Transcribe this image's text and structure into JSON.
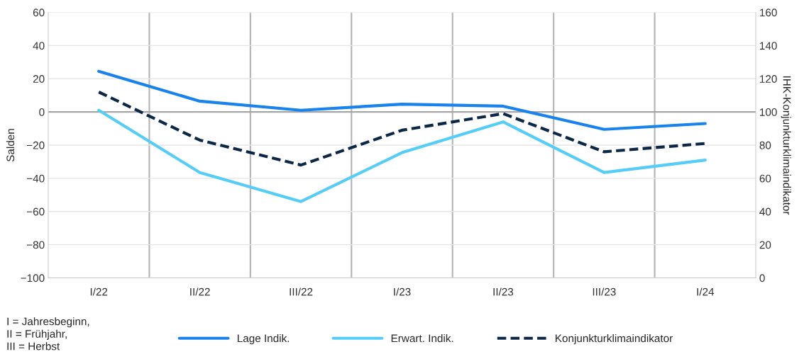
{
  "chart_data": {
    "type": "line",
    "ylabel": "Salden",
    "y2label": "IHK-Konjunkturklimaindikator",
    "categories": [
      "I/22",
      "II/22",
      "III/22",
      "I/23",
      "II/23",
      "III/23",
      "I/24"
    ],
    "series": [
      {
        "name": "Lage Indik.",
        "color": "#1a82ec",
        "values": [
          24.5,
          6.5,
          1,
          4.7,
          3.5,
          -10.5,
          -7
        ]
      },
      {
        "name": "Erwart. Indik.",
        "color": "#55cdf7",
        "values": [
          1,
          -36.5,
          -54,
          -24.5,
          -6,
          -36.5,
          -29
        ]
      },
      {
        "name": "Konjunkturklimaindikator",
        "color": "#0d2747",
        "values": [
          112,
          83,
          68,
          89,
          99,
          76,
          81
        ],
        "axis": "y2",
        "line_style": "dashed"
      }
    ],
    "ylim": [
      -100,
      60
    ],
    "yticks": [
      {
        "value": -100,
        "label": "−100"
      },
      {
        "value": -80,
        "label": "−80"
      },
      {
        "value": -60,
        "label": "−60"
      },
      {
        "value": -40,
        "label": "−40"
      },
      {
        "value": -20,
        "label": "−20"
      },
      0,
      20,
      40,
      60
    ],
    "y2lim": [
      0,
      160
    ],
    "y2ticks": [
      0,
      20,
      40,
      60,
      80,
      100,
      120,
      140,
      160
    ],
    "ref_lines": [
      {
        "axis": "y",
        "value": 0,
        "color": "#a6a6a6"
      }
    ],
    "grid": true,
    "legend": "bottom",
    "marker": "none",
    "line_style": "solid",
    "annotations": [
      "I = Jahresbeginn,\nII = Frühjahr,\nIII = Herbst"
    ]
  }
}
